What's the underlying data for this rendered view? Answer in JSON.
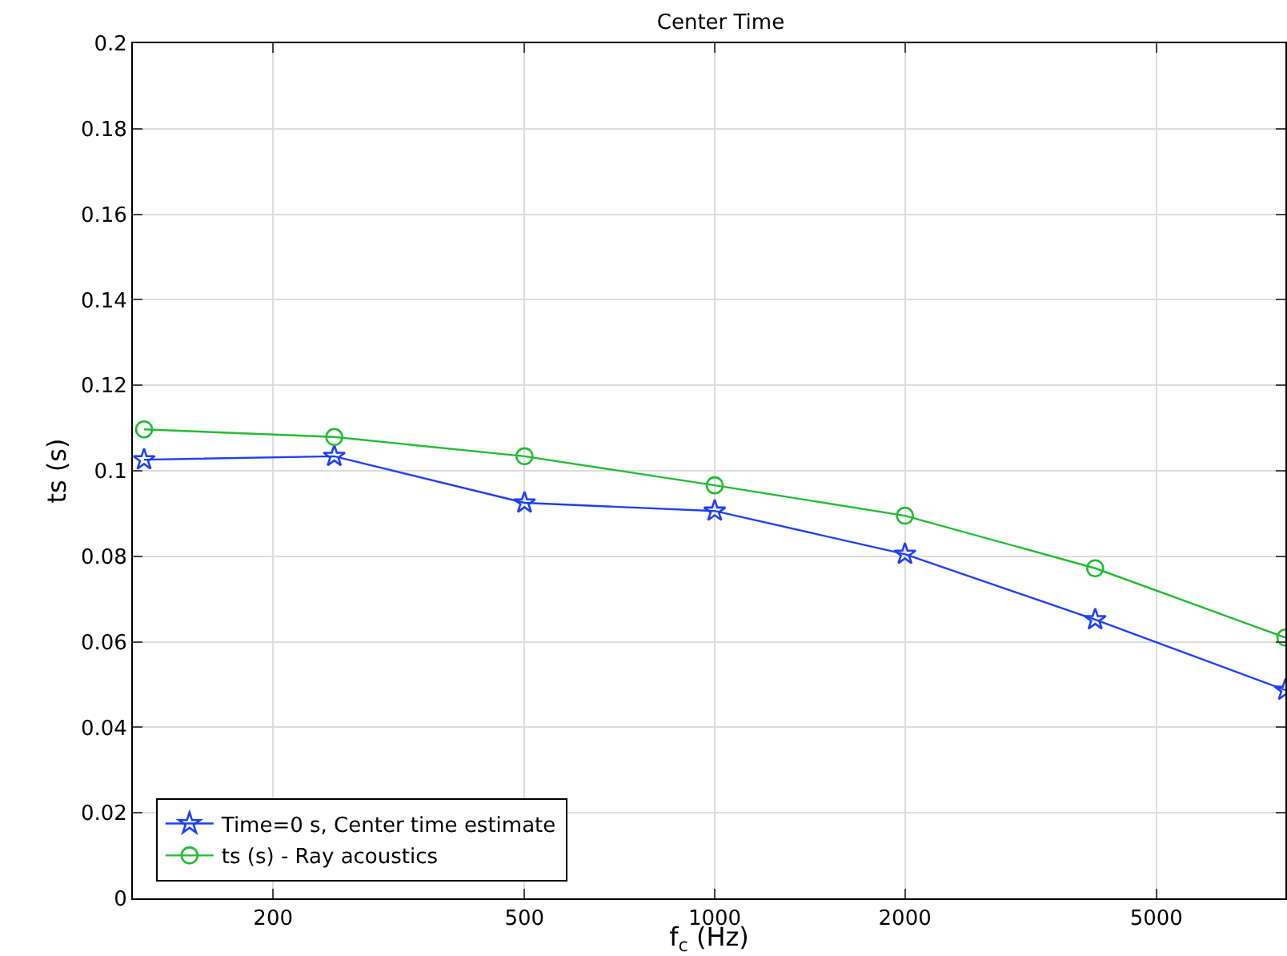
{
  "chart_data": {
    "type": "line",
    "title": "Center Time",
    "xlabel": "f$_{c}$ (Hz)",
    "ylabel": "ts (s)",
    "log": "x",
    "x": [
      125,
      250,
      500,
      1000,
      2000,
      4000,
      8000
    ],
    "series": [
      {
        "name": "Time=0 s, Center time estimate",
        "color": "#1f3ff5",
        "marker": "star",
        "values": [
          0.1026,
          0.1034,
          0.0925,
          0.0906,
          0.0805,
          0.0652,
          0.0487
        ]
      },
      {
        "name": "ts (s) - Ray acoustics",
        "color": "#22bb33",
        "marker": "circle",
        "values": [
          0.1097,
          0.1079,
          0.1034,
          0.0966,
          0.0895,
          0.0772,
          0.061
        ]
      }
    ],
    "xlim": [
      120,
      8000
    ],
    "xticks": [
      200,
      500,
      1000,
      2000,
      5000
    ],
    "ylim": [
      0,
      0.2
    ],
    "yticks": [
      0,
      0.02,
      0.04,
      0.06,
      0.08,
      0.1,
      0.12,
      0.14,
      0.16,
      0.18,
      0.2
    ],
    "grid": true,
    "legend": "bottom left",
    "line_style": "solid"
  }
}
